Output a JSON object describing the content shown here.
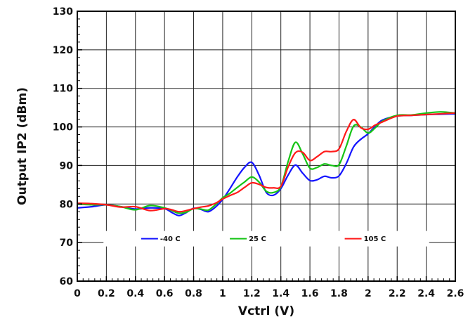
{
  "chart_data": {
    "type": "line",
    "title": "",
    "xlabel": "Vctrl (V)",
    "ylabel": "Output IP2 (dBm)",
    "xlim": [
      0,
      2.6
    ],
    "ylim": [
      60,
      130
    ],
    "x_ticks": [
      0,
      0.2,
      0.4,
      0.6,
      0.8,
      1,
      1.2,
      1.4,
      1.6,
      1.8,
      2,
      2.2,
      2.4,
      2.6
    ],
    "x_tick_labels": [
      "0",
      "0.2",
      "0.4",
      "0.6",
      "0.8",
      "1",
      "1.2",
      "1.4",
      "1.6",
      "1.8",
      "2",
      "2.2",
      "2.4",
      "2.6"
    ],
    "y_ticks": [
      60,
      70,
      80,
      90,
      100,
      110,
      120,
      130
    ],
    "y_tick_labels": [
      "60",
      "70",
      "80",
      "90",
      "100",
      "110",
      "120",
      "130"
    ],
    "grid": true,
    "minor_ticks": true,
    "legend_position": "inside-bottom",
    "series": [
      {
        "name": "-40 C",
        "color": "#1515ff",
        "x": [
          0,
          0.1,
          0.2,
          0.3,
          0.4,
          0.5,
          0.6,
          0.65,
          0.7,
          0.75,
          0.8,
          0.85,
          0.9,
          0.95,
          1.0,
          1.05,
          1.1,
          1.15,
          1.2,
          1.25,
          1.3,
          1.35,
          1.4,
          1.45,
          1.5,
          1.55,
          1.6,
          1.65,
          1.7,
          1.75,
          1.8,
          1.85,
          1.9,
          1.95,
          2.0,
          2.05,
          2.1,
          2.2,
          2.3,
          2.4,
          2.5,
          2.6
        ],
        "y": [
          79,
          79.3,
          79.8,
          79.3,
          78.7,
          79.0,
          78.8,
          77.8,
          77.0,
          77.8,
          78.9,
          78.6,
          78.0,
          79.2,
          81.2,
          84.0,
          87.0,
          89.5,
          90.8,
          87.5,
          83.0,
          82.3,
          84.0,
          87.5,
          90.1,
          88.0,
          86.1,
          86.3,
          87.2,
          86.8,
          87.3,
          90.5,
          94.8,
          96.8,
          98.2,
          100.2,
          101.8,
          102.8,
          103.0,
          103.2,
          103.3,
          103.4
        ]
      },
      {
        "name": "25 C",
        "color": "#16c416",
        "x": [
          0,
          0.1,
          0.2,
          0.3,
          0.4,
          0.5,
          0.6,
          0.65,
          0.7,
          0.75,
          0.8,
          0.85,
          0.9,
          0.95,
          1.0,
          1.05,
          1.1,
          1.15,
          1.2,
          1.25,
          1.3,
          1.35,
          1.4,
          1.45,
          1.5,
          1.55,
          1.6,
          1.65,
          1.7,
          1.75,
          1.8,
          1.85,
          1.9,
          1.95,
          2.0,
          2.05,
          2.1,
          2.2,
          2.3,
          2.4,
          2.5,
          2.6
        ],
        "y": [
          80,
          79.8,
          79.8,
          79.3,
          78.5,
          79.6,
          79.0,
          78.3,
          77.6,
          77.9,
          78.8,
          78.7,
          78.4,
          79.8,
          81.6,
          82.8,
          84.3,
          85.7,
          87.0,
          85.7,
          83.3,
          83.0,
          84.5,
          91.0,
          96.0,
          93.0,
          89.3,
          89.5,
          90.4,
          90.0,
          90.2,
          95.0,
          100.2,
          100.0,
          98.4,
          99.8,
          101.5,
          103.0,
          103.1,
          103.6,
          103.9,
          103.6
        ]
      },
      {
        "name": "105 C",
        "color": "#ff1a1a",
        "x": [
          0,
          0.1,
          0.2,
          0.3,
          0.4,
          0.5,
          0.6,
          0.65,
          0.7,
          0.75,
          0.8,
          0.85,
          0.9,
          0.95,
          1.0,
          1.05,
          1.1,
          1.15,
          1.2,
          1.25,
          1.3,
          1.35,
          1.4,
          1.45,
          1.5,
          1.55,
          1.6,
          1.65,
          1.7,
          1.75,
          1.8,
          1.85,
          1.9,
          1.95,
          2.0,
          2.05,
          2.1,
          2.2,
          2.3,
          2.4,
          2.5,
          2.6
        ],
        "y": [
          80.2,
          80.1,
          79.8,
          79.2,
          79.3,
          78.3,
          78.8,
          78.5,
          78.0,
          78.3,
          78.8,
          79.2,
          79.5,
          80.2,
          81.3,
          82.2,
          83.0,
          84.3,
          85.5,
          85.1,
          84.3,
          84.2,
          84.6,
          89.6,
          93.3,
          93.4,
          91.3,
          92.3,
          93.6,
          93.6,
          94.3,
          98.8,
          101.9,
          99.8,
          99.4,
          100.5,
          101.3,
          102.8,
          103.0,
          103.2,
          103.4,
          103.6
        ]
      }
    ]
  }
}
